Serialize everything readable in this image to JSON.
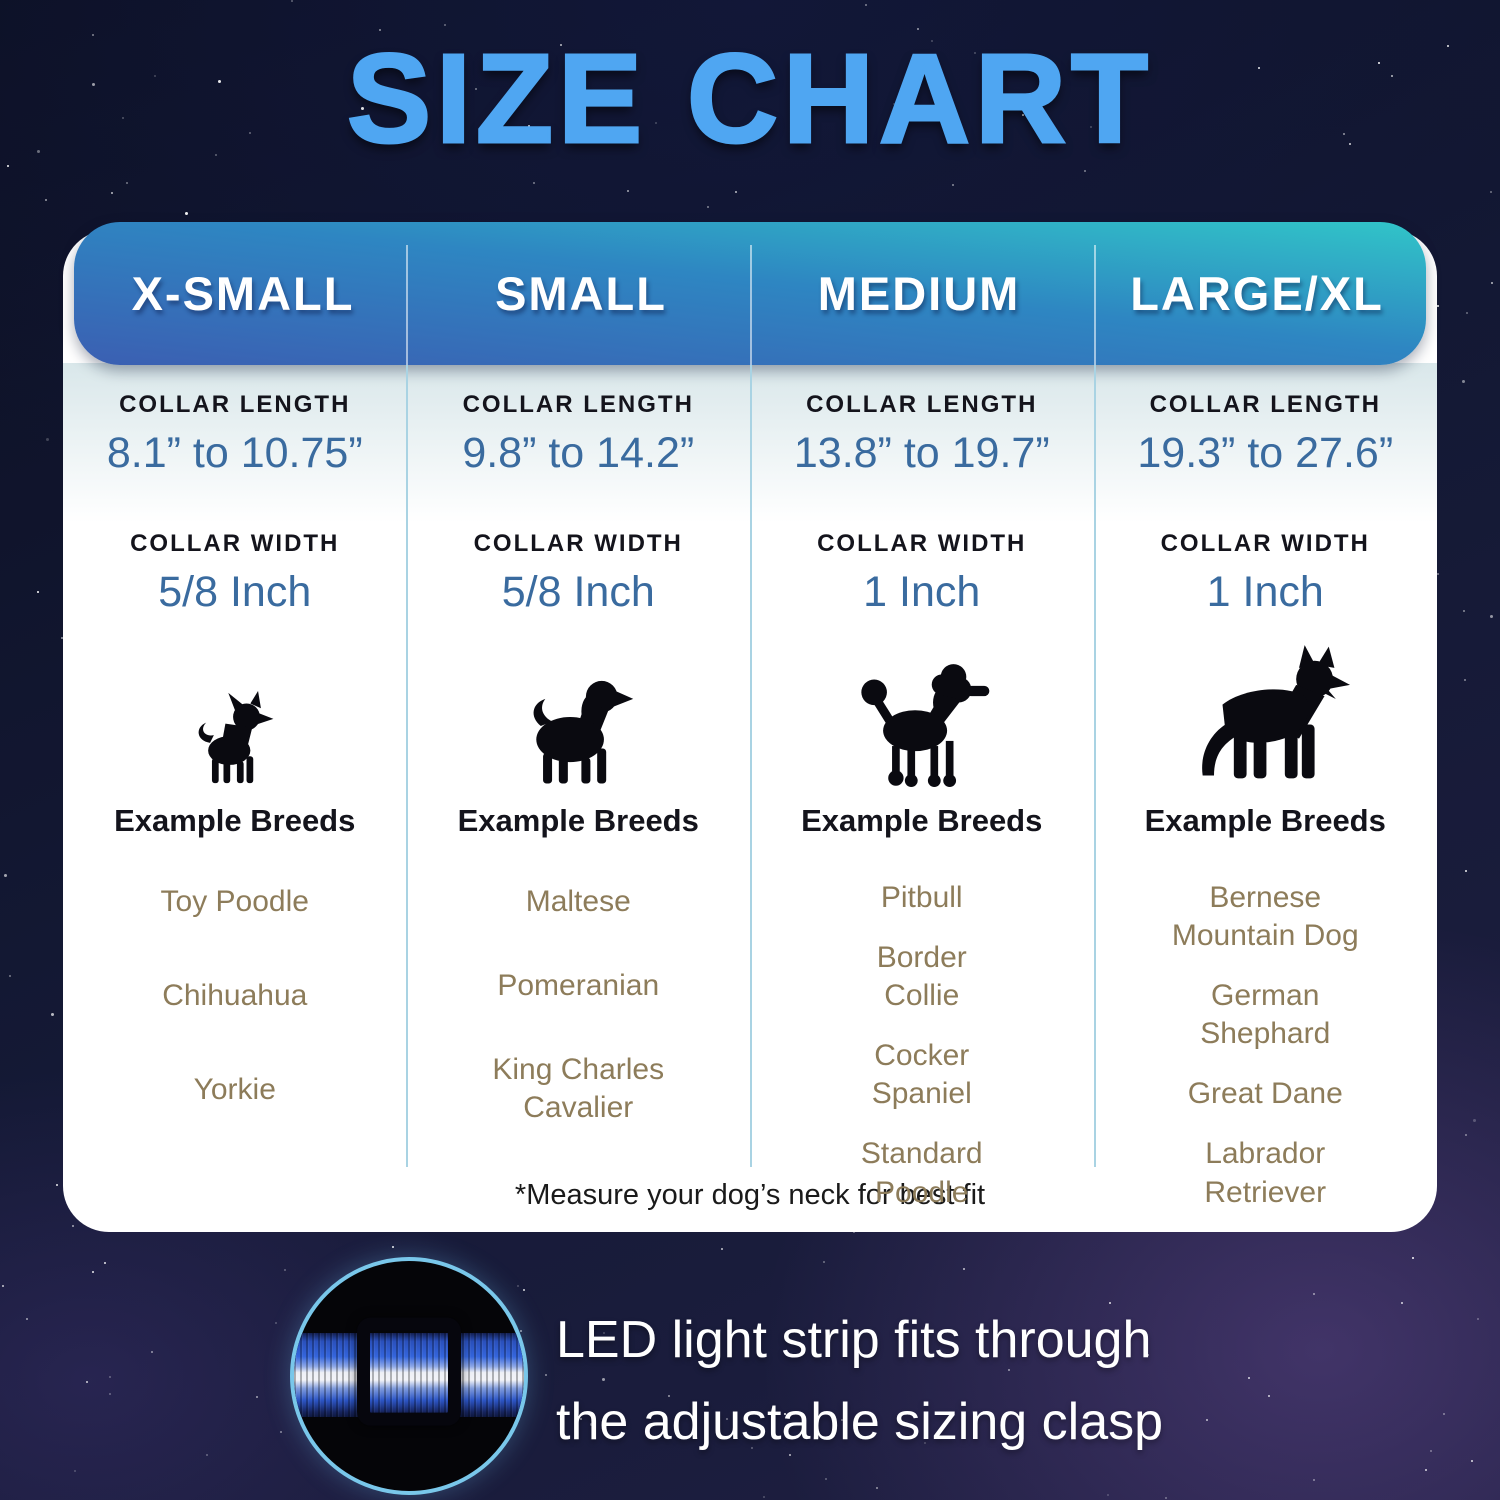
{
  "title": "SIZE CHART",
  "colors": {
    "title_blue": "#4fa6f2",
    "header_gradient_start": "#3b5fb2",
    "header_gradient_end": "#31c5c8",
    "value_blue": "#3a6b9f",
    "breed_brown": "#8d7c5a",
    "divider_blue": "#a9d3e3",
    "circle_ring_blue": "#79c7ea"
  },
  "table": {
    "columns": [
      {
        "name": "X-SMALL",
        "collar_length_label": "COLLAR LENGTH",
        "collar_length": "8.1” to 10.75”",
        "collar_width_label": "COLLAR WIDTH",
        "collar_width": "5/8 Inch",
        "dog_icon": "chihuahua-silhouette-icon",
        "example_breeds_label": "Example Breeds",
        "breeds": [
          "Toy Poodle",
          "Chihuahua",
          "Yorkie"
        ]
      },
      {
        "name": "SMALL",
        "collar_length_label": "COLLAR LENGTH",
        "collar_length": "9.8” to 14.2”",
        "collar_width_label": "COLLAR WIDTH",
        "collar_width": "5/8 Inch",
        "dog_icon": "cavalier-spaniel-silhouette-icon",
        "example_breeds_label": "Example Breeds",
        "breeds": [
          "Maltese",
          "Pomeranian",
          "King Charles\nCavalier"
        ]
      },
      {
        "name": "MEDIUM",
        "collar_length_label": "COLLAR LENGTH",
        "collar_length": "13.8” to 19.7”",
        "collar_width_label": "COLLAR WIDTH",
        "collar_width": "1 Inch",
        "dog_icon": "poodle-silhouette-icon",
        "example_breeds_label": "Example Breeds",
        "breeds": [
          "Pitbull",
          "Border\nCollie",
          "Cocker\nSpaniel",
          "Standard\nPoodle"
        ]
      },
      {
        "name": "LARGE/XL",
        "collar_length_label": "COLLAR LENGTH",
        "collar_length": "19.3” to 27.6”",
        "collar_width_label": "COLLAR WIDTH",
        "collar_width": "1 Inch",
        "dog_icon": "german-shepherd-silhouette-icon",
        "example_breeds_label": "Example Breeds",
        "breeds": [
          "Bernese\nMountain Dog",
          "German\nShephard",
          "Great Dane",
          "Labrador\nRetriever"
        ]
      }
    ],
    "footnote": "*Measure your dog’s neck for best fit"
  },
  "callout": {
    "line1": "LED light strip fits through",
    "line2": "the adjustable sizing clasp",
    "photo_icon": "collar-strap-through-clasp-photo"
  }
}
